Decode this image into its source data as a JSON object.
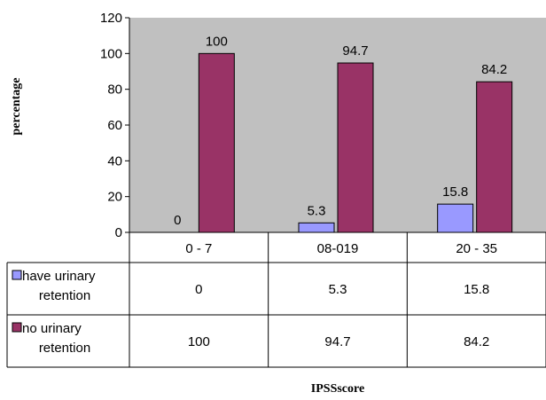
{
  "chart_data": {
    "type": "bar",
    "categories": [
      "0 - 7",
      "08-019",
      "20 - 35"
    ],
    "series": [
      {
        "name": "have urinary retention",
        "values": [
          0,
          5.3,
          15.8
        ],
        "color": "#9999FF",
        "data_labels": [
          "0",
          "5.3",
          "15.8"
        ],
        "table_values": [
          "0",
          "5.3",
          "15.8"
        ]
      },
      {
        "name": "no urinary retention",
        "values": [
          100,
          94.7,
          84.2
        ],
        "color": "#993366",
        "data_labels": [
          "100",
          "94.7",
          "84.2"
        ],
        "table_values": [
          "100",
          "94.7",
          "84.2"
        ]
      }
    ],
    "ylim": [
      0,
      120
    ],
    "yticks": [
      "0",
      "20",
      "40",
      "60",
      "80",
      "100",
      "120"
    ],
    "ylabel": "percentage",
    "xlabel": "IPSSscore",
    "legend_placement": "data-table",
    "grid": false,
    "plot_background": "#C0C0C0"
  }
}
